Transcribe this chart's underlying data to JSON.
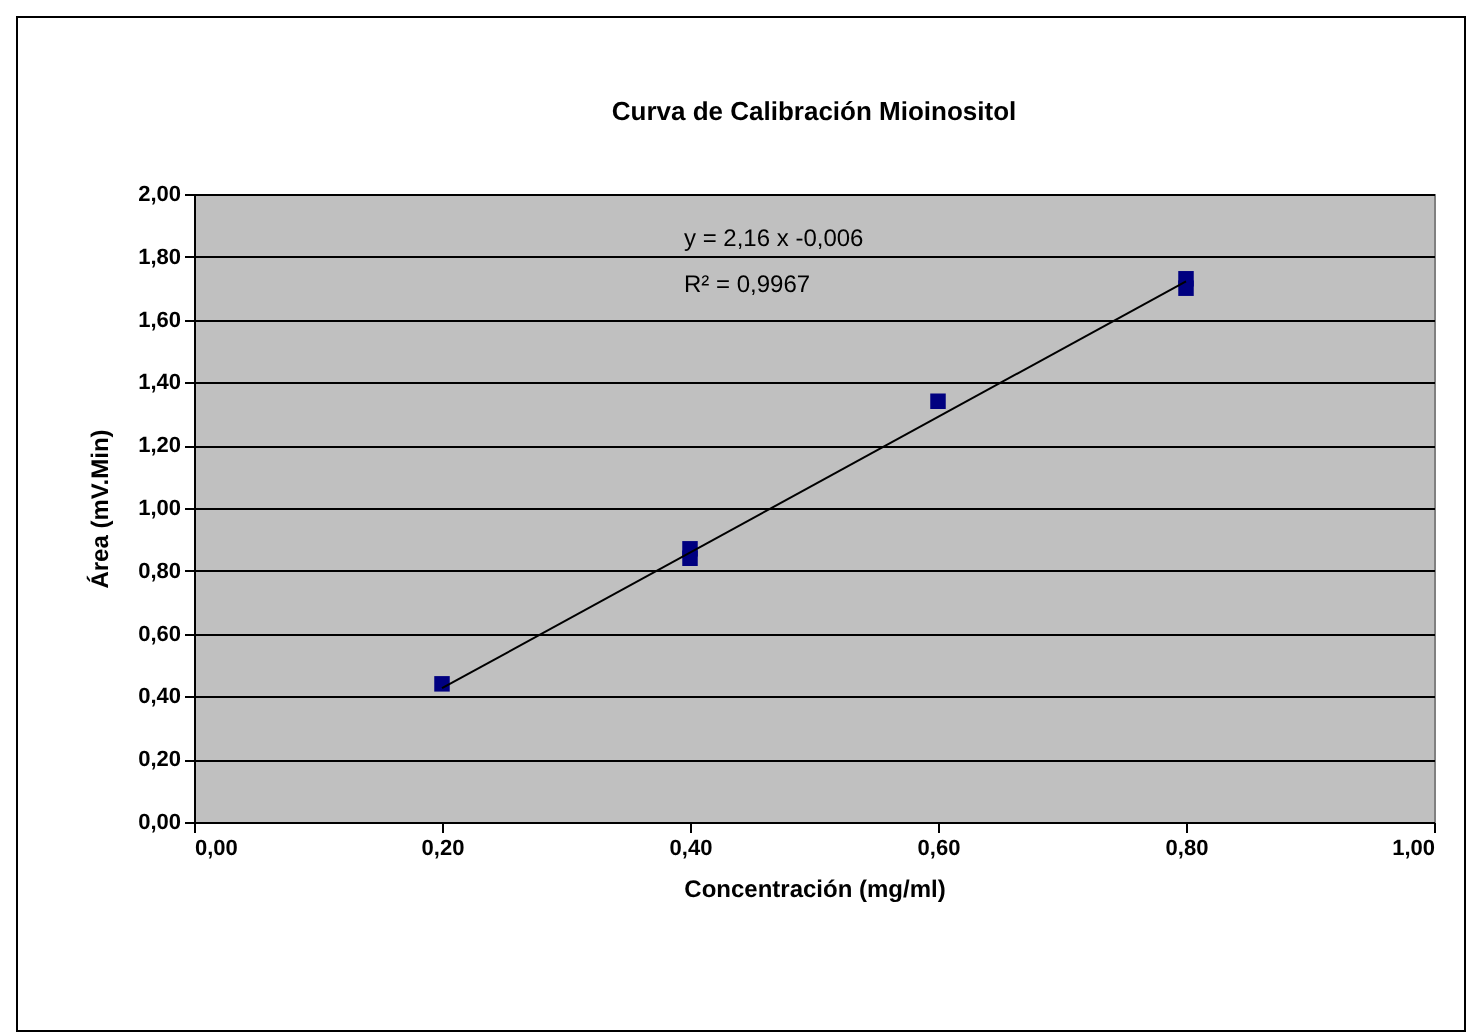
{
  "chart_data": {
    "type": "scatter",
    "title": "Curva de Calibración Mioinositol",
    "xlabel": "Concentración (mg/ml)",
    "ylabel": "Área (mV.Min)",
    "annotations": [
      "y = 2,16 x -0,006",
      "R² = 0,9967"
    ],
    "series": [
      {
        "type": "scatter",
        "color": "#000080",
        "x": [
          0.2,
          0.4,
          0.4,
          0.6,
          0.8,
          0.8
        ],
        "values": [
          0.44,
          0.84,
          0.87,
          1.34,
          1.7,
          1.73
        ],
        "marker": "square"
      },
      {
        "type": "line",
        "color": "#000000",
        "x": [
          0.2,
          0.8
        ],
        "values": [
          0.426,
          1.722
        ],
        "marker": "none",
        "line_style": "solid"
      }
    ],
    "xlim": [
      0,
      1
    ],
    "xticks": [
      {
        "value": 0,
        "label": "0,00"
      },
      {
        "value": 0.2,
        "label": "0,20"
      },
      {
        "value": 0.4,
        "label": "0,40"
      },
      {
        "value": 0.6,
        "label": "0,60"
      },
      {
        "value": 0.8,
        "label": "0,80"
      },
      {
        "value": 1,
        "label": "1,00"
      }
    ],
    "ylim": [
      0,
      2
    ],
    "yticks": [
      {
        "value": 0,
        "label": "0,00"
      },
      {
        "value": 0.2,
        "label": "0,20"
      },
      {
        "value": 0.4,
        "label": "0,40"
      },
      {
        "value": 0.6,
        "label": "0,60"
      },
      {
        "value": 0.8,
        "label": "0,80"
      },
      {
        "value": 1,
        "label": "1,00"
      },
      {
        "value": 1.2,
        "label": "1,20"
      },
      {
        "value": 1.4,
        "label": "1,40"
      },
      {
        "value": 1.6,
        "label": "1,60"
      },
      {
        "value": 1.8,
        "label": "1,80"
      },
      {
        "value": 2,
        "label": "2,00"
      }
    ],
    "grid": "y"
  }
}
